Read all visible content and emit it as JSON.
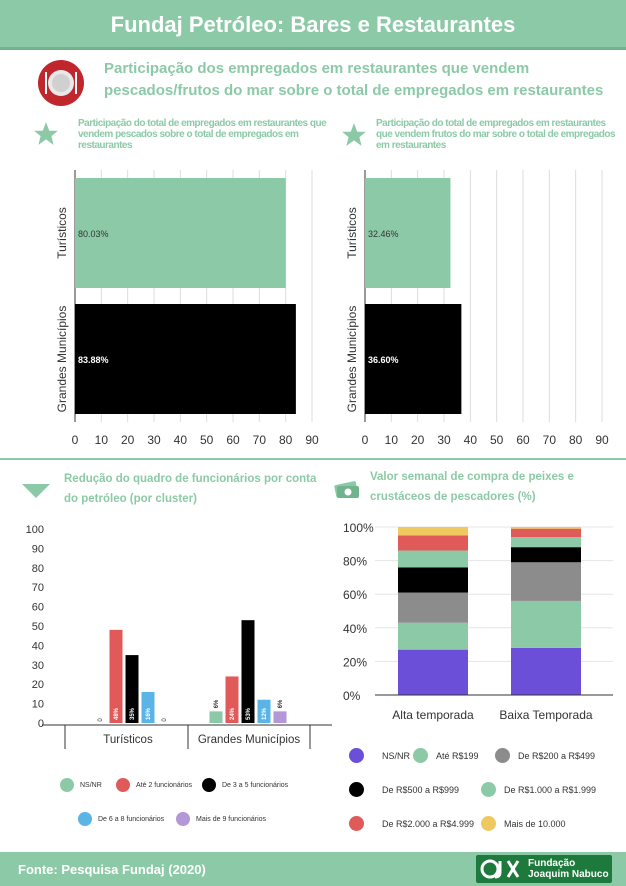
{
  "header": {
    "title": "Fundaj Petróleo: Bares e Restaurantes"
  },
  "section1": {
    "title_line1": "Participação dos empregados em restaurantes que vendem",
    "title_line2": "pescados/frutos do mar sobre o total de empregados em restaurantes"
  },
  "section2": {
    "title_line1": "Redução do quadro de funcionários por conta",
    "title_line2": "do petróleo (por cluster)"
  },
  "section3": {
    "title_line1": "Valor semanal de compra de peixes e",
    "title_line2": "crustáceos de pescadores (%)"
  },
  "footer": {
    "source": "Fonte: Pesquisa Fundaj (2020)",
    "logo_line1": "Fundação",
    "logo_line2": "Joaquim Nabuco"
  },
  "colors": {
    "green": "#8ccaa7",
    "black": "#000000",
    "red": "#e05a5a",
    "blue": "#5ab4e6",
    "purple": "#b497d6",
    "gray": "#8c8c8c",
    "violet": "#6b4fd8",
    "yellow": "#f0c860"
  },
  "chart_data": [
    {
      "type": "bar",
      "orientation": "horizontal",
      "title": "Participação do total de empregados em restaurantes que vendem pescados sobre o total de empregados em restaurantes",
      "categories": [
        "Turísticos",
        "Grandes Municípios"
      ],
      "values": [
        80.03,
        83.88
      ],
      "value_labels": [
        "80.03%",
        "83.88%"
      ],
      "bar_colors": [
        "#8ccaa7",
        "#000000"
      ],
      "xlim": [
        0,
        90
      ],
      "xticks": [
        "0",
        "10",
        "20",
        "30",
        "40",
        "50",
        "60",
        "70",
        "80",
        "90"
      ]
    },
    {
      "type": "bar",
      "orientation": "horizontal",
      "title": "Participação do total de empregados em restaurantes que vendem frutos do mar sobre o total de empregados em restaurantes",
      "categories": [
        "Turísticos",
        "Grandes Municípios"
      ],
      "values": [
        32.46,
        36.6
      ],
      "value_labels": [
        "32.46%",
        "36.60%"
      ],
      "bar_colors": [
        "#8ccaa7",
        "#000000"
      ],
      "xlim": [
        0,
        90
      ],
      "xticks": [
        "0",
        "10",
        "20",
        "30",
        "40",
        "50",
        "60",
        "70",
        "80",
        "90"
      ]
    },
    {
      "type": "bar",
      "title": "Redução do quadro de funcionários por conta do petróleo (por cluster)",
      "categories": [
        "Turísticos",
        "Grandes Municípios"
      ],
      "ylim": [
        0,
        100
      ],
      "yticks": [
        "0",
        "10",
        "20",
        "30",
        "40",
        "50",
        "60",
        "70",
        "80",
        "90",
        "100"
      ],
      "series": [
        {
          "name": "NS/NR",
          "color": "#8ccaa7",
          "values": [
            0,
            6
          ],
          "labels": [
            "0",
            "6%"
          ]
        },
        {
          "name": "Até 2 funcionários",
          "color": "#e05a5a",
          "values": [
            48,
            24
          ],
          "labels": [
            "48%",
            "24%"
          ]
        },
        {
          "name": "De 3 a 5 funcionários",
          "color": "#000000",
          "values": [
            35,
            53
          ],
          "labels": [
            "35%",
            "53%"
          ]
        },
        {
          "name": "De 6 a 8 funcionários",
          "color": "#5ab4e6",
          "values": [
            16,
            12
          ],
          "labels": [
            "16%",
            "12%"
          ]
        },
        {
          "name": "Mais de 9 funcionários",
          "color": "#b497d6",
          "values": [
            0,
            6
          ],
          "labels": [
            "0",
            "6%"
          ]
        }
      ]
    },
    {
      "type": "bar",
      "stacked": true,
      "title": "Valor semanal de compra de peixes e crustáceos de pescadores (%)",
      "categories": [
        "Alta temporada",
        "Baixa Temporada"
      ],
      "ylim": [
        0,
        100
      ],
      "yticks": [
        "0%",
        "20%",
        "40%",
        "60%",
        "80%",
        "100%"
      ],
      "series": [
        {
          "name": "NS/NR",
          "color": "#6b4fd8",
          "values": [
            27,
            28
          ]
        },
        {
          "name": "Até R$199",
          "color": "#8ccaa7",
          "values": [
            16,
            28
          ]
        },
        {
          "name": "De R$200 a R$499",
          "color": "#8c8c8c",
          "values": [
            18,
            23
          ]
        },
        {
          "name": "De R$500 a R$999",
          "color": "#000000",
          "values": [
            15,
            9
          ]
        },
        {
          "name": "De R$1.000 a R$1.999",
          "color": "#8ccaa7",
          "values": [
            10,
            6
          ]
        },
        {
          "name": "De R$2.000 a R$4.999",
          "color": "#e05a5a",
          "values": [
            9,
            5
          ]
        },
        {
          "name": "Mais de 10.000",
          "color": "#f0c860",
          "values": [
            5,
            1
          ]
        }
      ]
    }
  ]
}
